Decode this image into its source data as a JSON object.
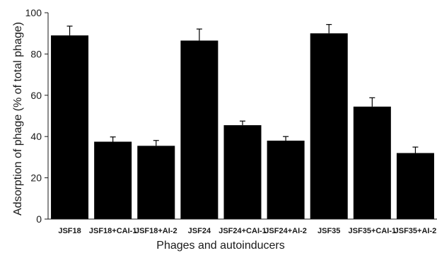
{
  "chart_data": {
    "type": "bar",
    "categories": [
      "JSF18",
      "JSF18+CAI-1",
      "JSF18+AI-2",
      "JSF24",
      "JSF24+CAI-1",
      "JSF24+AI-2",
      "JSF35",
      "JSF35+CAI-1",
      "JSF35+AI-2"
    ],
    "values": [
      89,
      37.5,
      35.5,
      86.5,
      45.5,
      38,
      90,
      54.5,
      32
    ],
    "errors": [
      4.5,
      2.3,
      2.6,
      5.6,
      2.0,
      2.0,
      4.3,
      4.3,
      2.9
    ],
    "title": "",
    "xlabel": "Phages and autoinducers",
    "ylabel": "Adsorption of phage (% of total phage)",
    "ylim": [
      0,
      100
    ],
    "yticks": [
      0,
      20,
      40,
      60,
      80,
      100
    ],
    "grid": false,
    "bar_color": "#000000"
  }
}
